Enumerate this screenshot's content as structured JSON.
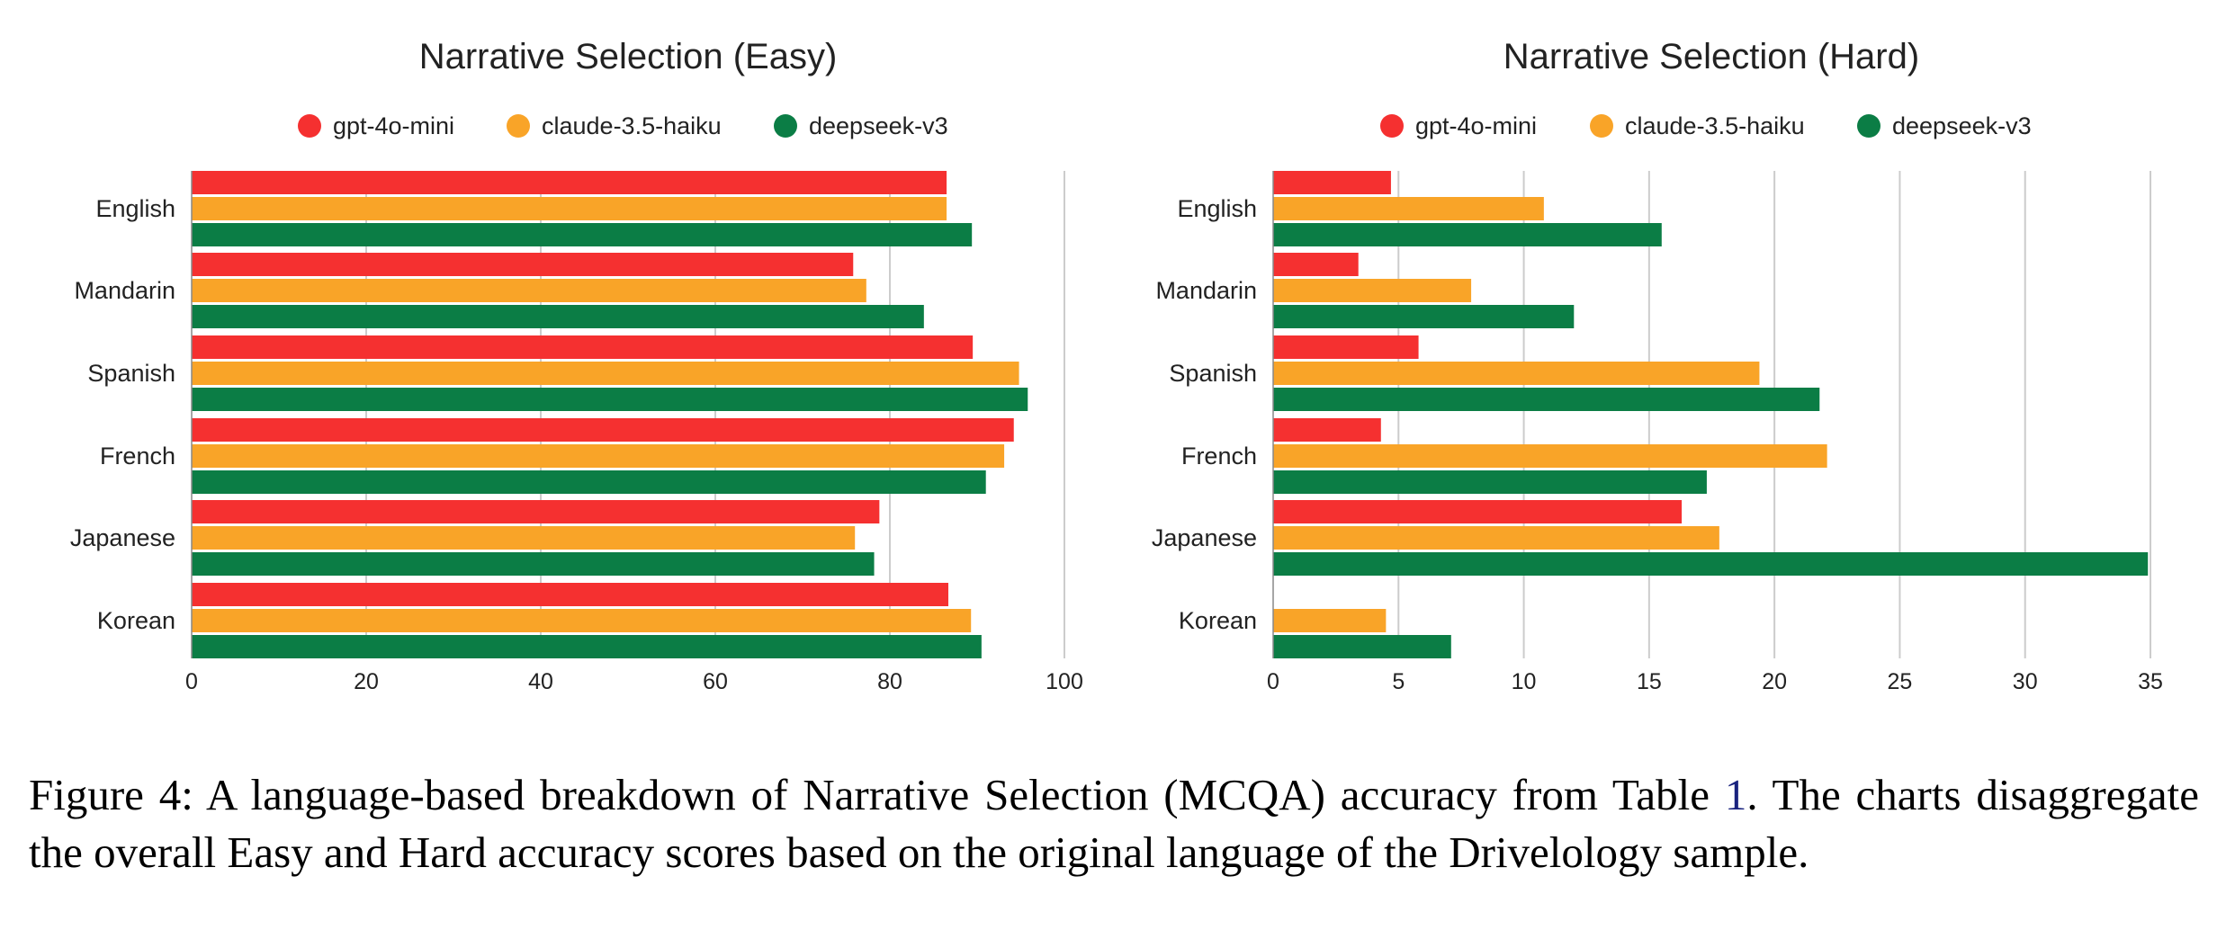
{
  "colors": {
    "gpt-4o-mini": "#f53030",
    "claude-3.5-haiku": "#f9a428",
    "deepseek-v3": "#0b7d45",
    "grid": "#cccccc"
  },
  "chart_data": [
    {
      "type": "bar",
      "orientation": "horizontal",
      "title": "Narrative Selection (Easy)",
      "categories": [
        "English",
        "Mandarin",
        "Spanish",
        "French",
        "Japanese",
        "Korean"
      ],
      "series": [
        {
          "name": "gpt-4o-mini",
          "values": [
            86.5,
            75.8,
            89.5,
            94.2,
            78.8,
            86.7
          ]
        },
        {
          "name": "claude-3.5-haiku",
          "values": [
            86.5,
            77.3,
            94.8,
            93.1,
            76.0,
            89.3
          ]
        },
        {
          "name": "deepseek-v3",
          "values": [
            89.4,
            83.9,
            95.8,
            91.0,
            78.2,
            90.5
          ]
        }
      ],
      "xlim": [
        0,
        100
      ],
      "xticks": [
        0,
        20,
        40,
        60,
        80,
        100
      ],
      "legend": "top",
      "grid": "vertical"
    },
    {
      "type": "bar",
      "orientation": "horizontal",
      "title": "Narrative Selection (Hard)",
      "categories": [
        "English",
        "Mandarin",
        "Spanish",
        "French",
        "Japanese",
        "Korean"
      ],
      "series": [
        {
          "name": "gpt-4o-mini",
          "values": [
            4.7,
            3.4,
            5.8,
            4.3,
            16.3,
            0
          ]
        },
        {
          "name": "claude-3.5-haiku",
          "values": [
            10.8,
            7.9,
            19.4,
            22.1,
            17.8,
            4.5
          ]
        },
        {
          "name": "deepseek-v3",
          "values": [
            15.5,
            12.0,
            21.8,
            17.3,
            34.9,
            7.1
          ]
        }
      ],
      "xlim": [
        0,
        35
      ],
      "xticks": [
        0,
        5,
        10,
        15,
        20,
        25,
        30,
        35
      ],
      "legend": "top",
      "grid": "vertical"
    }
  ],
  "caption": {
    "prefix": "Figure 4:  A language-based breakdown of Narrative Selection (MCQA) accuracy from Table ",
    "ref": "1",
    "suffix": ".  The charts disaggregate the overall Easy and Hard accuracy scores based on the original language of the Drivelology sample."
  }
}
